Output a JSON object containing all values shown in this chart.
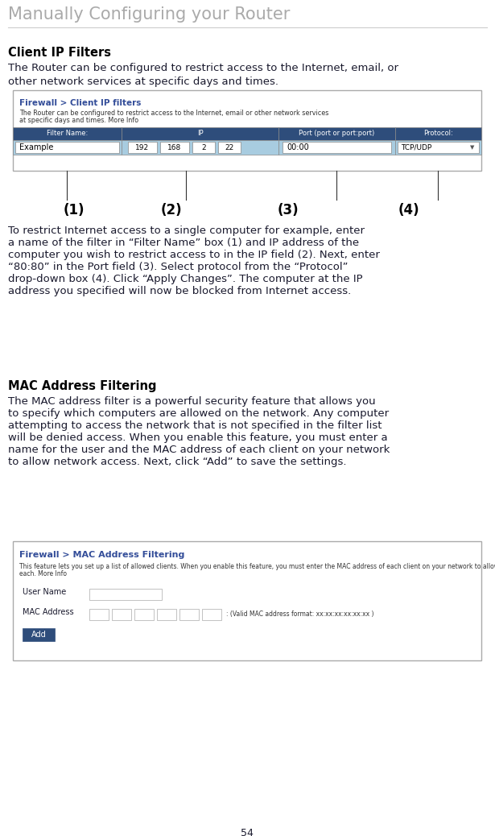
{
  "title": "Manually Configuring your Router",
  "title_color": "#aaaaaa",
  "title_fontsize": 15,
  "bg_color": "#ffffff",
  "section1_heading": "Client IP Filters",
  "section1_heading_color": "#000000",
  "section1_heading_fontsize": 10.5,
  "section1_intro": "The Router can be configured to restrict access to the Internet, email, or\nother network services at specific days and times.",
  "section1_intro_fontsize": 9.5,
  "firewall_box1_title": "Firewall > Client IP filters",
  "firewall_box1_desc_line1": "The Router can be configured to restrict access to the Internet, email or other network services",
  "firewall_box1_desc_line2": "at specific days and times. More Info",
  "firewall_box1_header_cols": [
    "Filter Name:",
    "IP",
    "Port (port or port:port)",
    "Protocol:"
  ],
  "callouts": [
    "(1)",
    "(2)",
    "(3)",
    "(4)"
  ],
  "section1_body_lines": [
    "To restrict Internet access to a single computer for example, enter",
    "a name of the filter in “Filter Name” box (1) and IP address of the",
    "computer you wish to restrict access to in the IP field (2). Next, enter",
    "“80:80” in the Port field (3). Select protocol from the “Protocol”",
    "drop-down box (4). Click “Apply Changes”. The computer at the IP",
    "address you specified will now be blocked from Internet access."
  ],
  "section1_body_fontsize": 9.5,
  "section2_heading": "MAC Address Filtering",
  "section2_heading_color": "#000000",
  "section2_heading_fontsize": 10.5,
  "section2_body_lines": [
    "The MAC address filter is a powerful security feature that allows you",
    "to specify which computers are allowed on the network. Any computer",
    "attempting to access the network that is not specified in the filter list",
    "will be denied access. When you enable this feature, you must enter a",
    "name for the user and the MAC address of each client on your network",
    "to allow network access. Next, click “Add” to save the settings."
  ],
  "section2_body_fontsize": 9.5,
  "firewall_box2_title": "Firewall > MAC Address Filtering",
  "firewall_box2_desc_line1": "This feature lets you set up a list of allowed clients. When you enable this feature, you must enter the MAC address of each client on your network to allow network access to",
  "firewall_box2_desc_line2": "each. More Info",
  "firewall_box2_user_label": "User Name",
  "firewall_box2_mac_label": "MAC Address",
  "firewall_box2_add_btn": "Add",
  "firewall_box2_mac_hint": ": (Valid MAC address format: xx:xx:xx:xx:xx:xx )",
  "page_number": "54",
  "table_header_bg": "#2e4d7b",
  "table_header_text": "#ffffff",
  "table_row_bg": "#a8cce0",
  "table_border": "#888888",
  "body_text_color": "#1a1a2e",
  "heading_color": "#000000",
  "box_border_color": "#aaaaaa",
  "firewall_title_color": "#334d99",
  "firewall_desc_color": "#333333",
  "link_color": "#6688cc",
  "add_btn_bg": "#2e4d7b",
  "add_btn_text": "#ffffff",
  "box_bg": "#ffffff"
}
